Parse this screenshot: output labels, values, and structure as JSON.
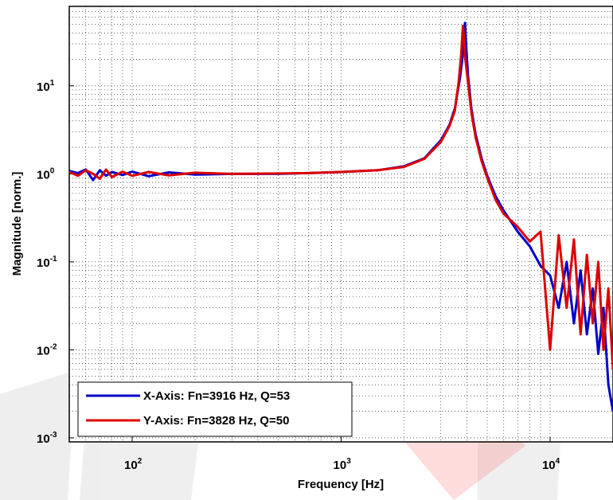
{
  "chart_data": {
    "type": "line",
    "xlabel": "Frequency [Hz]",
    "ylabel": "Magnitude [norm.]",
    "xscale": "log",
    "yscale": "log",
    "xlim": [
      50,
      20000
    ],
    "ylim": [
      0.0009,
      80
    ],
    "x_ticks": [
      {
        "base": "10",
        "exp": "2",
        "value": 100
      },
      {
        "base": "10",
        "exp": "3",
        "value": 1000
      },
      {
        "base": "10",
        "exp": "4",
        "value": 10000
      }
    ],
    "y_ticks": [
      {
        "base": "10",
        "exp": "-3",
        "value": 0.001
      },
      {
        "base": "10",
        "exp": "-2",
        "value": 0.01
      },
      {
        "base": "10",
        "exp": "-1",
        "value": 0.1
      },
      {
        "base": "10",
        "exp": "0",
        "value": 1
      },
      {
        "base": "10",
        "exp": "1",
        "value": 10
      }
    ],
    "grid": true,
    "legend_position": "bottom-left",
    "series": [
      {
        "name": "X-Axis: Fn=3916 Hz, Q=53",
        "color": "#0000cc",
        "x": [
          50,
          55,
          60,
          65,
          70,
          75,
          80,
          90,
          100,
          120,
          150,
          200,
          300,
          500,
          700,
          1000,
          1500,
          2000,
          2500,
          3000,
          3300,
          3500,
          3700,
          3800,
          3880,
          3916,
          3960,
          4050,
          4200,
          4400,
          4700,
          5000,
          5500,
          6000,
          7000,
          8000,
          9000,
          10000,
          11000,
          12000,
          13000,
          14000,
          15000,
          16000,
          17000,
          18000,
          19000,
          20000
        ],
        "y": [
          1.08,
          1.02,
          1.12,
          0.85,
          1.1,
          0.95,
          1.05,
          0.97,
          1.06,
          0.94,
          1.04,
          0.98,
          1.0,
          1.0,
          1.02,
          1.05,
          1.1,
          1.22,
          1.5,
          2.4,
          3.6,
          5.5,
          12,
          20,
          38,
          52,
          30,
          13,
          5.5,
          2.8,
          1.5,
          0.95,
          0.55,
          0.38,
          0.22,
          0.15,
          0.09,
          0.07,
          0.03,
          0.1,
          0.02,
          0.08,
          0.015,
          0.05,
          0.009,
          0.03,
          0.004,
          0.002
        ]
      },
      {
        "name": "Y-Axis: Fn=3828 Hz, Q=50",
        "color": "#dd0000",
        "x": [
          50,
          55,
          60,
          65,
          70,
          75,
          80,
          90,
          100,
          120,
          150,
          200,
          300,
          500,
          700,
          1000,
          1500,
          2000,
          2500,
          3000,
          3300,
          3500,
          3650,
          3750,
          3828,
          3870,
          3930,
          4050,
          4200,
          4400,
          4700,
          5000,
          5500,
          6000,
          7000,
          8000,
          9000,
          10000,
          11000,
          12000,
          13000,
          14000,
          15000,
          16000,
          17000,
          18000,
          19000,
          20000
        ],
        "y": [
          1.05,
          0.95,
          1.1,
          1.0,
          0.88,
          1.12,
          0.92,
          1.06,
          0.95,
          1.05,
          0.96,
          1.03,
          1.0,
          1.01,
          1.02,
          1.05,
          1.1,
          1.2,
          1.48,
          2.3,
          3.5,
          5.2,
          11,
          22,
          48,
          35,
          20,
          11,
          5.0,
          2.6,
          1.4,
          0.9,
          0.5,
          0.35,
          0.25,
          0.17,
          0.22,
          0.01,
          0.2,
          0.03,
          0.18,
          0.015,
          0.12,
          0.02,
          0.1,
          0.01,
          0.05,
          0.006
        ]
      }
    ]
  }
}
